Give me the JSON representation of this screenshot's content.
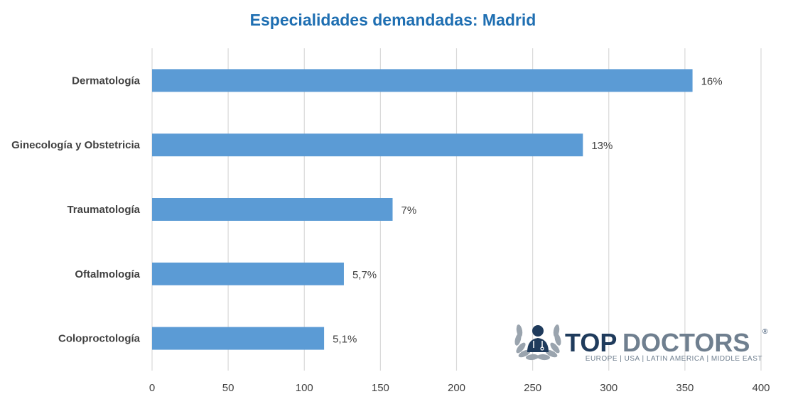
{
  "colors": {
    "bar": "#5b9bd5",
    "title": "#1f6fb2",
    "grid": "#d9d9d9",
    "brand_dark": "#1f3b5c",
    "brand_grey": "#6f7f8f"
  },
  "chart_data": {
    "type": "bar",
    "orientation": "horizontal",
    "title": "Especialidades demandadas: Madrid",
    "categories": [
      "Dermatología",
      "Ginecología y Obstetricia",
      "Traumatología",
      "Oftalmología",
      "Coloproctología"
    ],
    "values": [
      355,
      283,
      158,
      126,
      113
    ],
    "data_labels": [
      "16%",
      "13%",
      "7%",
      "5,7%",
      "5,1%"
    ],
    "xlim": [
      0,
      400
    ],
    "xticks": [
      0,
      50,
      100,
      150,
      200,
      250,
      300,
      350,
      400
    ],
    "grid": true,
    "legend": "none"
  },
  "logo": {
    "brand_top": "TOP",
    "brand_doctors": "DOCTORS",
    "registered": "®",
    "tagline": "EUROPE | USA | LATIN AMERICA | MIDDLE EAST",
    "icon": "doctor-laurel-icon"
  }
}
